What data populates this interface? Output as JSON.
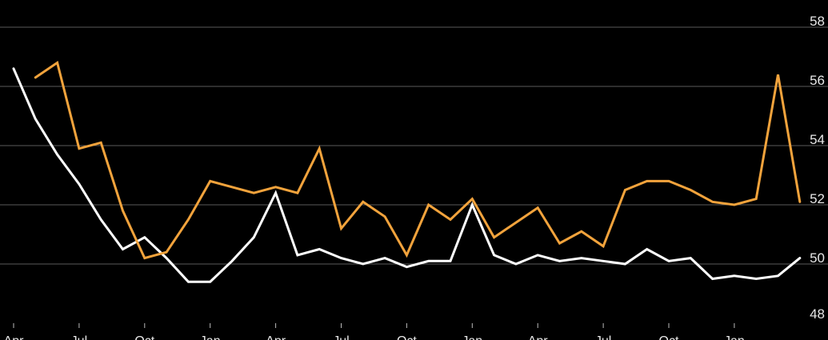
{
  "chart_data": {
    "type": "line",
    "title": "",
    "xlabel": "",
    "ylabel": "",
    "ylim": [
      48,
      58
    ],
    "y_ticks": [
      48,
      50,
      52,
      54,
      56,
      58
    ],
    "y_axis_position": "right",
    "grid": true,
    "x_tick_labels": [
      "Apr",
      "Jul",
      "Oct",
      "Jan",
      "Apr",
      "Jul",
      "Oct",
      "Jan",
      "Apr",
      "Jul",
      "Oct",
      "Jan"
    ],
    "x_tick_months": [
      0,
      3,
      6,
      9,
      12,
      15,
      18,
      21,
      24,
      27,
      30,
      33
    ],
    "series": [
      {
        "color": "#ffffff",
        "x": [
          0,
          1,
          2,
          3,
          4,
          5,
          6,
          7,
          8,
          9,
          10,
          11,
          12,
          13,
          14,
          15,
          16,
          17,
          18,
          19,
          20,
          21,
          22,
          23,
          24,
          25,
          26,
          27,
          28,
          29,
          30,
          31,
          32,
          33,
          34,
          35,
          36
        ],
        "values": [
          56.6,
          54.9,
          53.7,
          52.7,
          51.5,
          50.5,
          50.9,
          50.2,
          49.4,
          49.4,
          50.1,
          50.9,
          52.4,
          50.3,
          50.5,
          50.2,
          50.0,
          50.2,
          49.9,
          50.1,
          50.1,
          52.0,
          50.3,
          50.0,
          50.3,
          50.1,
          50.2,
          50.1,
          50.0,
          50.5,
          50.1,
          50.2,
          49.5,
          49.6,
          49.5,
          49.6,
          50.2
        ]
      },
      {
        "color": "#f2a33c",
        "x": [
          1,
          2,
          3,
          4,
          5,
          6,
          7,
          8,
          9,
          10,
          11,
          12,
          13,
          14,
          15,
          16,
          17,
          18,
          19,
          20,
          21,
          22,
          23,
          24,
          25,
          26,
          27,
          28,
          29,
          30,
          31,
          32,
          33,
          34,
          35,
          36
        ],
        "values": [
          56.3,
          56.8,
          53.9,
          54.1,
          51.8,
          50.2,
          50.4,
          51.5,
          52.8,
          52.6,
          52.4,
          52.6,
          52.4,
          53.9,
          51.2,
          52.1,
          51.6,
          50.3,
          52.0,
          51.5,
          52.2,
          50.9,
          51.4,
          51.9,
          50.7,
          51.1,
          50.6,
          52.5,
          52.8,
          52.8,
          52.5,
          52.1,
          52.0,
          52.2,
          56.4,
          52.1
        ]
      }
    ]
  }
}
